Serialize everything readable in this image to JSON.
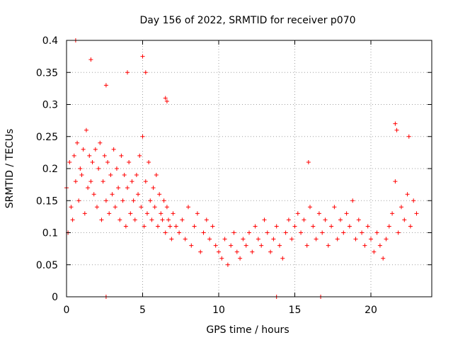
{
  "chart_data": {
    "type": "scatter",
    "title": "Day 156 of 2022, SRMTID for receiver p070",
    "xlabel": "GPS time / hours",
    "ylabel": "SRMTID / TECUs",
    "xlim": [
      0,
      24
    ],
    "ylim": [
      0,
      0.4
    ],
    "grid": true,
    "marker": "plus",
    "series_color": "#ff0000",
    "x_ticks": [
      0,
      5,
      10,
      15,
      20
    ],
    "x_tick_labels": [
      "0",
      "5",
      "10",
      "15",
      "20"
    ],
    "y_ticks": [
      0,
      0.05,
      0.1,
      0.15,
      0.2,
      0.25,
      0.3,
      0.35,
      0.4
    ],
    "y_tick_labels": [
      "0",
      "0.05",
      "0.1",
      "0.15",
      "0.2",
      "0.25",
      "0.3",
      "0.35",
      "0.4"
    ],
    "series": [
      {
        "name": "SRMTID",
        "x": [
          0.0,
          0.1,
          0.2,
          0.3,
          0.4,
          0.5,
          0.6,
          0.7,
          0.8,
          0.9,
          1.0,
          1.1,
          1.2,
          1.3,
          1.4,
          1.5,
          1.6,
          1.7,
          1.8,
          1.9,
          2.0,
          2.1,
          2.2,
          2.3,
          2.4,
          2.5,
          2.6,
          2.7,
          2.8,
          2.9,
          3.0,
          3.1,
          3.2,
          3.3,
          3.4,
          3.5,
          3.6,
          3.7,
          3.8,
          3.9,
          4.0,
          4.1,
          4.2,
          4.3,
          4.4,
          4.5,
          4.6,
          4.7,
          4.8,
          4.9,
          5.0,
          5.1,
          5.2,
          5.3,
          5.4,
          5.5,
          5.6,
          5.7,
          5.8,
          5.9,
          6.0,
          6.1,
          6.2,
          6.3,
          6.4,
          6.5,
          6.6,
          6.7,
          6.8,
          6.9,
          7.0,
          7.2,
          7.4,
          7.6,
          7.8,
          8.0,
          8.2,
          8.4,
          8.6,
          8.8,
          9.0,
          9.2,
          9.4,
          9.6,
          9.8,
          10.0,
          10.2,
          10.4,
          10.6,
          10.8,
          11.0,
          11.2,
          11.4,
          11.6,
          11.8,
          12.0,
          12.2,
          12.4,
          12.6,
          12.8,
          13.0,
          13.2,
          13.4,
          13.6,
          13.8,
          14.0,
          14.2,
          14.4,
          14.6,
          14.8,
          15.0,
          15.2,
          15.4,
          15.6,
          15.8,
          16.0,
          16.2,
          16.4,
          16.6,
          16.8,
          17.0,
          17.2,
          17.4,
          17.6,
          17.8,
          18.0,
          18.2,
          18.4,
          18.6,
          18.8,
          19.0,
          19.2,
          19.4,
          19.6,
          19.8,
          20.0,
          20.2,
          20.4,
          20.6,
          20.8,
          21.0,
          21.2,
          21.4,
          21.6,
          21.8,
          22.0,
          22.2,
          22.4,
          22.6,
          22.8,
          23.0,
          0.6,
          1.6,
          5.0,
          5.2,
          4.0,
          2.6,
          6.5,
          6.6,
          15.9,
          21.6,
          21.7,
          22.5,
          2.6,
          13.8,
          16.7
        ],
        "y": [
          0.17,
          0.1,
          0.21,
          0.14,
          0.12,
          0.22,
          0.18,
          0.24,
          0.15,
          0.2,
          0.19,
          0.23,
          0.13,
          0.26,
          0.17,
          0.22,
          0.18,
          0.21,
          0.16,
          0.23,
          0.14,
          0.2,
          0.24,
          0.12,
          0.18,
          0.22,
          0.15,
          0.21,
          0.13,
          0.19,
          0.16,
          0.23,
          0.14,
          0.2,
          0.17,
          0.12,
          0.22,
          0.15,
          0.19,
          0.11,
          0.17,
          0.21,
          0.13,
          0.18,
          0.15,
          0.12,
          0.19,
          0.16,
          0.22,
          0.14,
          0.25,
          0.11,
          0.18,
          0.13,
          0.21,
          0.15,
          0.12,
          0.17,
          0.14,
          0.19,
          0.11,
          0.16,
          0.13,
          0.12,
          0.15,
          0.1,
          0.14,
          0.12,
          0.11,
          0.09,
          0.13,
          0.11,
          0.1,
          0.12,
          0.09,
          0.14,
          0.08,
          0.11,
          0.13,
          0.07,
          0.1,
          0.12,
          0.09,
          0.11,
          0.08,
          0.07,
          0.06,
          0.09,
          0.05,
          0.08,
          0.1,
          0.07,
          0.06,
          0.09,
          0.08,
          0.1,
          0.07,
          0.11,
          0.09,
          0.08,
          0.12,
          0.1,
          0.07,
          0.09,
          0.11,
          0.08,
          0.06,
          0.1,
          0.12,
          0.09,
          0.11,
          0.13,
          0.1,
          0.12,
          0.08,
          0.14,
          0.11,
          0.09,
          0.13,
          0.1,
          0.12,
          0.08,
          0.11,
          0.14,
          0.09,
          0.12,
          0.1,
          0.13,
          0.11,
          0.15,
          0.09,
          0.12,
          0.1,
          0.08,
          0.11,
          0.09,
          0.07,
          0.1,
          0.08,
          0.06,
          0.09,
          0.11,
          0.13,
          0.18,
          0.1,
          0.14,
          0.12,
          0.16,
          0.11,
          0.15,
          0.13,
          0.4,
          0.37,
          0.375,
          0.35,
          0.35,
          0.33,
          0.31,
          0.305,
          0.21,
          0.27,
          0.26,
          0.25,
          0.0,
          0.0,
          0.0
        ]
      }
    ]
  }
}
